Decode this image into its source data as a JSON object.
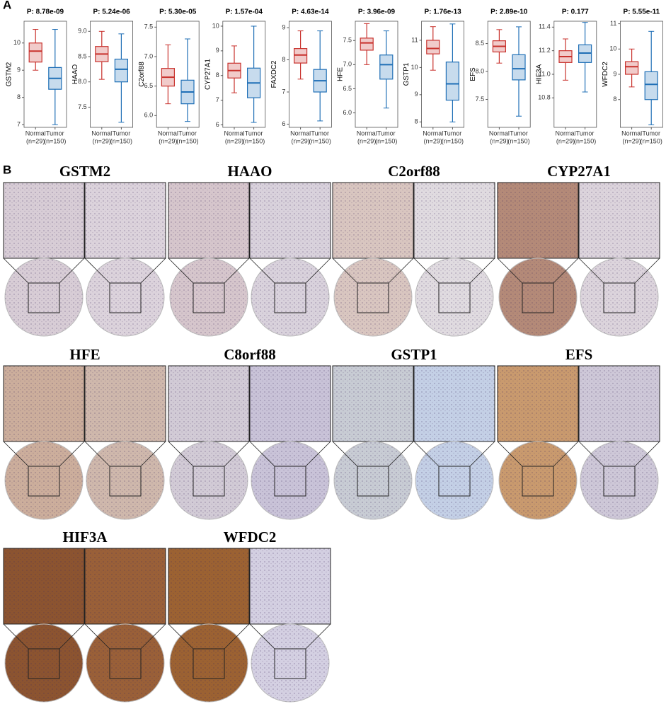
{
  "panel_labels": [
    "A",
    "B"
  ],
  "chart_data": [
    {
      "type": "box",
      "title": "P: 8.78e-09",
      "ylabel": "GSTM2",
      "categories": [
        "Normal",
        "Tumor"
      ],
      "category_notes": [
        "(n=29)",
        "(n=150)"
      ],
      "ylim": [
        6.9,
        10.8
      ],
      "yticks": [
        7,
        8,
        9,
        10
      ],
      "boxes": [
        {
          "color": "#c8312c",
          "low": 9.0,
          "q1": 9.3,
          "median": 9.7,
          "q3": 10.0,
          "high": 10.5
        },
        {
          "color": "#1f6fb6",
          "low": 7.0,
          "q1": 8.3,
          "median": 8.7,
          "q3": 9.1,
          "high": 10.5
        }
      ]
    },
    {
      "type": "box",
      "title": "P: 5.24e-06",
      "ylabel": "HAAO",
      "categories": [
        "Normal",
        "Tumor"
      ],
      "category_notes": [
        "(n=29)",
        "(n=150)"
      ],
      "ylim": [
        7.1,
        9.2
      ],
      "yticks": [
        7.5,
        {
          "value": 8,
          "label": "8.0"
        },
        8.5,
        {
          "value": 9,
          "label": "9.0"
        }
      ],
      "boxes": [
        {
          "color": "#c8312c",
          "low": 8.05,
          "q1": 8.4,
          "median": 8.55,
          "q3": 8.7,
          "high": 9.0
        },
        {
          "color": "#1f6fb6",
          "low": 7.2,
          "q1": 8.0,
          "median": 8.25,
          "q3": 8.45,
          "high": 8.95
        }
      ]
    },
    {
      "type": "box",
      "title": "P: 5.30e-05",
      "ylabel": "C2orf88",
      "categories": [
        "Normal",
        "Tumor"
      ],
      "category_notes": [
        "(n=29)",
        "(n=150)"
      ],
      "ylim": [
        5.8,
        7.6
      ],
      "yticks": [
        {
          "value": 6,
          "label": "6.0"
        },
        6.5,
        {
          "value": 7,
          "label": "7.0"
        },
        7.5
      ],
      "boxes": [
        {
          "color": "#c8312c",
          "low": 6.2,
          "q1": 6.5,
          "median": 6.65,
          "q3": 6.8,
          "high": 7.2
        },
        {
          "color": "#1f6fb6",
          "low": 5.9,
          "q1": 6.2,
          "median": 6.4,
          "q3": 6.6,
          "high": 7.3
        }
      ]
    },
    {
      "type": "box",
      "title": "P: 1.57e-04",
      "ylabel": "CYP27A1",
      "categories": [
        "Normal",
        "Tumor"
      ],
      "category_notes": [
        "(n=29)",
        "(n=150)"
      ],
      "ylim": [
        5.9,
        10.2
      ],
      "yticks": [
        6,
        7,
        8,
        9,
        10
      ],
      "boxes": [
        {
          "color": "#c8312c",
          "low": 7.3,
          "q1": 7.9,
          "median": 8.2,
          "q3": 8.5,
          "high": 9.2
        },
        {
          "color": "#1f6fb6",
          "low": 6.1,
          "q1": 7.1,
          "median": 7.7,
          "q3": 8.3,
          "high": 10.0
        }
      ]
    },
    {
      "type": "box",
      "title": "P: 4.63e-14",
      "ylabel": "FAXDC2",
      "categories": [
        "Normal",
        "Tumor"
      ],
      "category_notes": [
        "(n=29)",
        "(n=150)"
      ],
      "ylim": [
        5.9,
        9.2
      ],
      "yticks": [
        6,
        7,
        8,
        9
      ],
      "boxes": [
        {
          "color": "#c8312c",
          "low": 7.4,
          "q1": 7.9,
          "median": 8.15,
          "q3": 8.35,
          "high": 8.9
        },
        {
          "color": "#1f6fb6",
          "low": 6.1,
          "q1": 7.0,
          "median": 7.35,
          "q3": 7.7,
          "high": 8.9
        }
      ]
    },
    {
      "type": "box",
      "title": "P: 3.96e-09",
      "ylabel": "HFE",
      "categories": [
        "Normal",
        "Tumor"
      ],
      "category_notes": [
        "(n=29)",
        "(n=150)"
      ],
      "ylim": [
        5.7,
        7.9
      ],
      "yticks": [
        {
          "value": 6,
          "label": "6.0"
        },
        6.5,
        {
          "value": 7,
          "label": "7.0"
        },
        7.5
      ],
      "boxes": [
        {
          "color": "#c8312c",
          "low": 7.0,
          "q1": 7.3,
          "median": 7.45,
          "q3": 7.55,
          "high": 7.85
        },
        {
          "color": "#1f6fb6",
          "low": 6.1,
          "q1": 6.7,
          "median": 7.0,
          "q3": 7.2,
          "high": 7.7
        }
      ]
    },
    {
      "type": "box",
      "title": "P: 1.76e-13",
      "ylabel": "GSTP1",
      "categories": [
        "Normal",
        "Tumor"
      ],
      "category_notes": [
        "(n=29)",
        "(n=150)"
      ],
      "ylim": [
        7.8,
        11.7
      ],
      "yticks": [
        8,
        9,
        10,
        11
      ],
      "boxes": [
        {
          "color": "#c8312c",
          "low": 9.9,
          "q1": 10.5,
          "median": 10.7,
          "q3": 11.0,
          "high": 11.5
        },
        {
          "color": "#1f6fb6",
          "low": 8.0,
          "q1": 8.8,
          "median": 9.4,
          "q3": 10.2,
          "high": 11.6
        }
      ]
    },
    {
      "type": "box",
      "title": "P: 2.89e-10",
      "ylabel": "EFS",
      "categories": [
        "Normal",
        "Tumor"
      ],
      "category_notes": [
        "(n=29)",
        "(n=150)"
      ],
      "ylim": [
        7.0,
        8.9
      ],
      "yticks": [
        7.5,
        {
          "value": 8,
          "label": "8.0"
        },
        8.5
      ],
      "boxes": [
        {
          "color": "#c8312c",
          "low": 8.15,
          "q1": 8.35,
          "median": 8.45,
          "q3": 8.55,
          "high": 8.75
        },
        {
          "color": "#1f6fb6",
          "low": 7.2,
          "q1": 7.85,
          "median": 8.05,
          "q3": 8.3,
          "high": 8.8
        }
      ]
    },
    {
      "type": "box",
      "title": "P: 0.177",
      "ylabel": "HIF3A",
      "categories": [
        "Normal",
        "Tumor"
      ],
      "category_notes": [
        "(n=29)",
        "(n=150)"
      ],
      "ylim": [
        10.55,
        11.45
      ],
      "yticks": [
        10.8,
        {
          "value": 11,
          "label": "11.0"
        },
        11.2,
        11.4
      ],
      "boxes": [
        {
          "color": "#c8312c",
          "low": 10.95,
          "q1": 11.1,
          "median": 11.15,
          "q3": 11.2,
          "high": 11.3
        },
        {
          "color": "#1f6fb6",
          "low": 10.85,
          "q1": 11.1,
          "median": 11.18,
          "q3": 11.25,
          "high": 11.44
        }
      ]
    },
    {
      "type": "box",
      "title": "P: 5.55e-11",
      "ylabel": "WFDC2",
      "categories": [
        "Normal",
        "Tumor"
      ],
      "category_notes": [
        "(n=29)",
        "(n=150)"
      ],
      "ylim": [
        6.9,
        11.1
      ],
      "yticks": [
        8,
        9,
        10,
        11
      ],
      "boxes": [
        {
          "color": "#c8312c",
          "low": 8.5,
          "q1": 9.0,
          "median": 9.3,
          "q3": 9.5,
          "high": 10.0
        },
        {
          "color": "#1f6fb6",
          "low": 7.0,
          "q1": 8.0,
          "median": 8.6,
          "q3": 9.1,
          "high": 10.7
        }
      ]
    }
  ],
  "ihc": {
    "genes": [
      "GSTM2",
      "HAAO",
      "C2orf88",
      "CYP27A1",
      "HFE",
      "C8orf88",
      "GSTP1",
      "EFS",
      "HIF3A",
      "WFDC2"
    ]
  }
}
